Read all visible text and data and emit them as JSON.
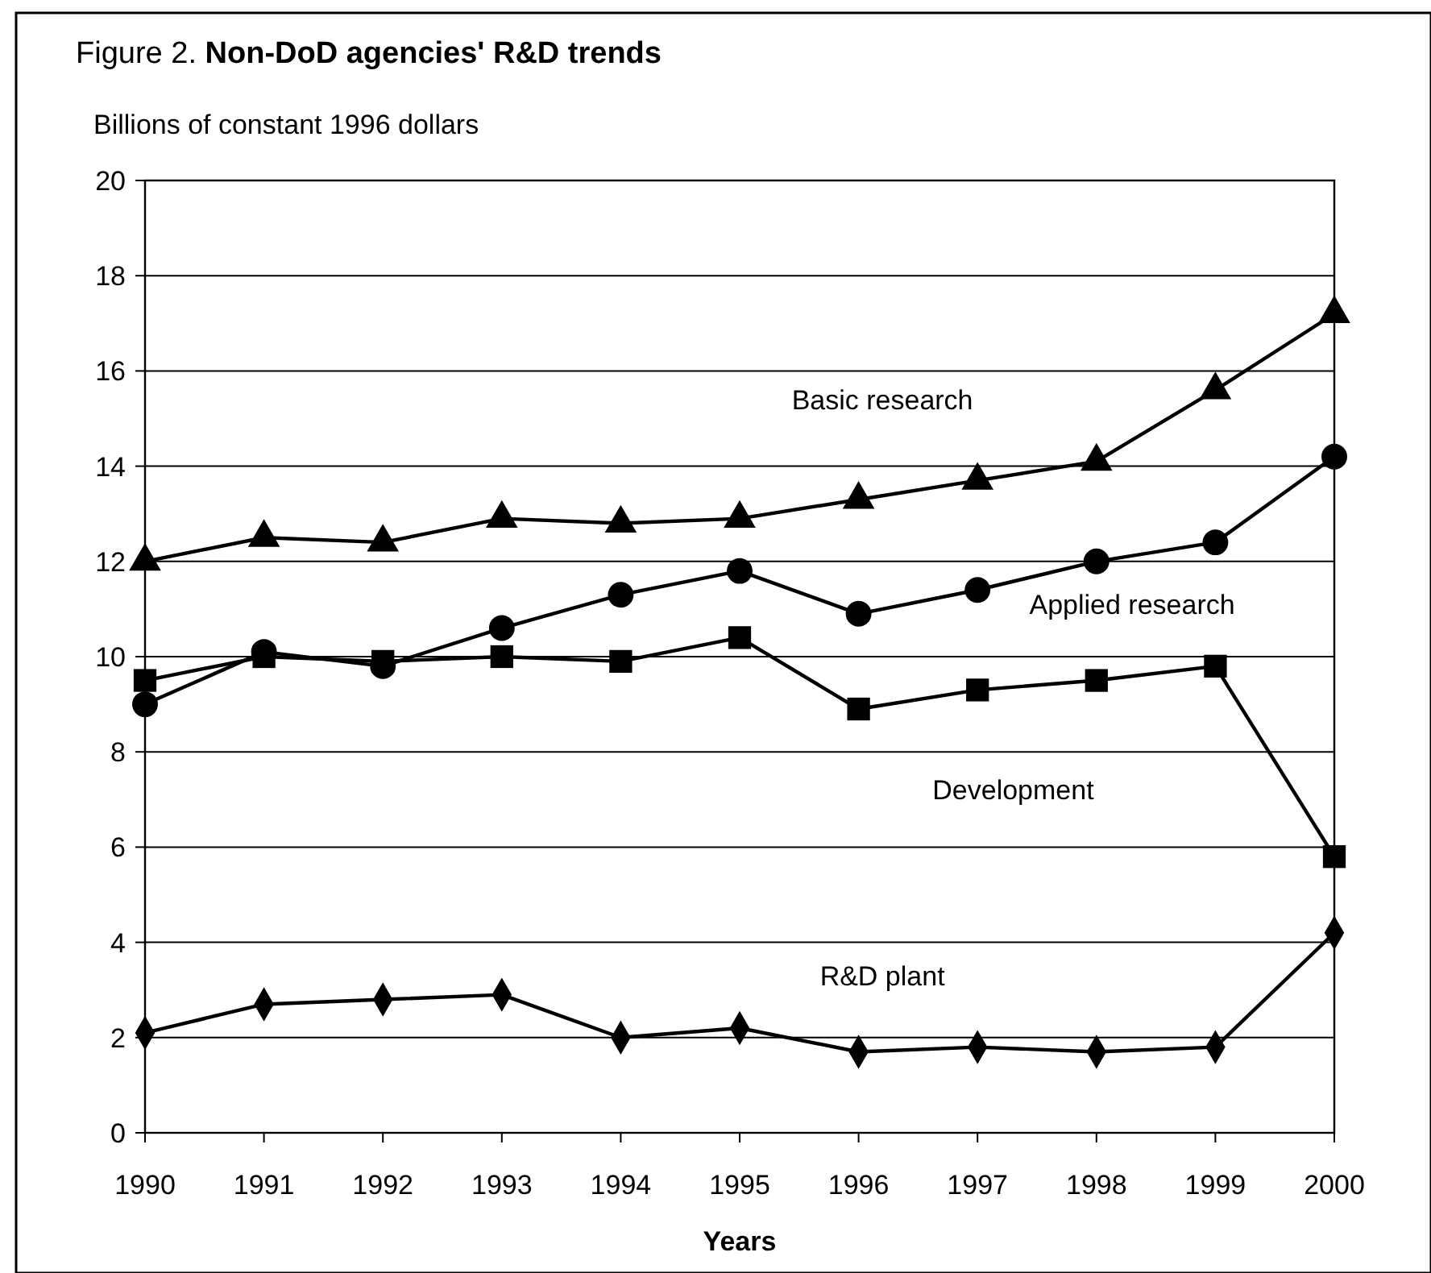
{
  "chart_data": {
    "type": "line",
    "title": "Figure 2. Non-DoD agencies' R&D trends",
    "ylabel": "Billions of constant 1996 dollars",
    "xlabel": "Years",
    "x": [
      1990,
      1991,
      1992,
      1993,
      1994,
      1995,
      1996,
      1997,
      1998,
      1999,
      2000
    ],
    "xlim": [
      1990,
      2000
    ],
    "xticks": [
      1990,
      1991,
      1992,
      1993,
      1994,
      1995,
      1996,
      1997,
      1998,
      1999,
      2000
    ],
    "ylim": [
      0,
      20
    ],
    "yticks": [
      0,
      2,
      4,
      6,
      8,
      10,
      12,
      14,
      16,
      18,
      20
    ],
    "grid": "y",
    "legend": false,
    "line_style": "solid",
    "series": [
      {
        "name": "Basic research",
        "color": "#000000",
        "marker": "triangle",
        "values": [
          12,
          12.5,
          12.4,
          12.9,
          12.8,
          12.9,
          13.3,
          13.7,
          14.1,
          15.6,
          17.2
        ]
      },
      {
        "name": "Applied research",
        "color": "#000000",
        "marker": "circle",
        "values": [
          9.0,
          10.1,
          9.8,
          10.6,
          11.3,
          11.8,
          10.9,
          11.4,
          12.0,
          12.4,
          14.2
        ]
      },
      {
        "name": "Development",
        "color": "#000000",
        "marker": "square",
        "values": [
          9.5,
          10.0,
          9.9,
          10.0,
          9.9,
          10.4,
          8.9,
          9.3,
          9.5,
          9.8,
          5.8
        ]
      },
      {
        "name": "R&D plant",
        "color": "#000000",
        "marker": "diamond",
        "values": [
          2.1,
          2.7,
          2.8,
          2.9,
          2.0,
          2.2,
          1.7,
          1.8,
          1.7,
          1.8,
          4.2
        ]
      }
    ]
  }
}
